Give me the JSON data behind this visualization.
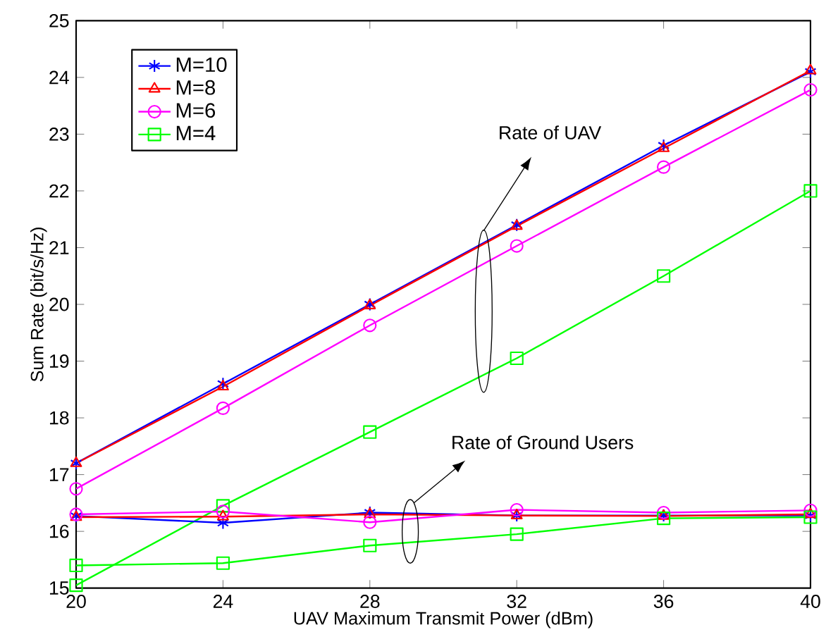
{
  "chart_data": {
    "type": "line",
    "xlabel": "UAV Maximum Transmit Power (dBm)",
    "ylabel": "Sum Rate (bit/s/Hz)",
    "x": [
      20,
      24,
      28,
      32,
      36,
      40
    ],
    "series": [
      {
        "name": "M=10",
        "color": "#0000ff",
        "marker": "cross",
        "values": [
          17.2,
          18.6,
          20.0,
          21.4,
          22.8,
          24.1
        ]
      },
      {
        "name": "M=8",
        "color": "#ff0000",
        "marker": "triangle",
        "values": [
          17.2,
          18.55,
          19.98,
          21.38,
          22.75,
          24.12
        ]
      },
      {
        "name": "M=6",
        "color": "#ff00ff",
        "marker": "circle",
        "values": [
          16.75,
          18.17,
          19.63,
          21.03,
          22.42,
          23.78
        ]
      },
      {
        "name": "M=4",
        "color": "#00ff00",
        "marker": "square",
        "values": [
          15.05,
          16.45,
          17.75,
          19.05,
          20.5,
          22.0
        ]
      },
      {
        "color": "#0000ff",
        "marker": "cross",
        "values": [
          16.27,
          16.15,
          16.33,
          16.28,
          16.28,
          16.28
        ]
      },
      {
        "color": "#ff0000",
        "marker": "triangle",
        "values": [
          16.25,
          16.26,
          16.3,
          16.28,
          16.27,
          16.3
        ]
      },
      {
        "color": "#ff00ff",
        "marker": "circle",
        "values": [
          16.3,
          16.35,
          16.16,
          16.38,
          16.33,
          16.37
        ]
      },
      {
        "color": "#00ff00",
        "marker": "square",
        "values": [
          15.4,
          15.44,
          15.75,
          15.95,
          16.23,
          16.25
        ]
      }
    ],
    "xlim": [
      20,
      40
    ],
    "xticks": [
      20,
      24,
      28,
      32,
      36,
      40
    ],
    "ylim": [
      15,
      25
    ],
    "yticks": [
      15,
      16,
      17,
      18,
      19,
      20,
      21,
      22,
      23,
      24,
      25
    ],
    "legend": "top left",
    "grid": false,
    "line_style": "solid",
    "annotations": [
      "Rate of UAV",
      "Rate of Ground Users"
    ]
  }
}
